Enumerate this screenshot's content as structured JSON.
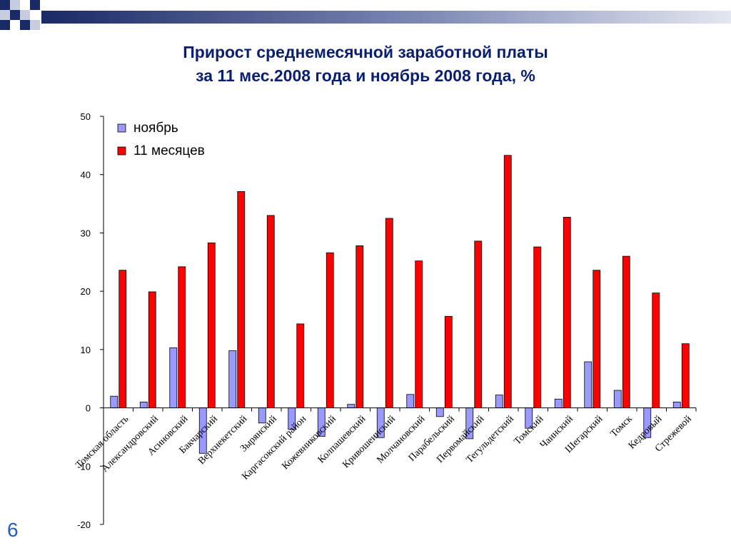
{
  "slide": {
    "title_line1": "Прирост среднемесячной заработной платы",
    "title_line2": "за 11 мес.2008 года и ноябрь 2008 года, %",
    "page_number": "6"
  },
  "colors": {
    "title": "#0a1f70",
    "page_number": "#1f5fbf",
    "banner_dark": "#1a2a66",
    "banner_light": "#c7cde0"
  },
  "chart_data": {
    "type": "bar",
    "categories": [
      "Томская область",
      "Александровский",
      "Асиновский",
      "Бакчарский",
      "Верхнекетский",
      "Зырянский",
      "Каргасокский район",
      "Кожевниковский",
      "Колпашевский",
      "Кривошеинский",
      "Молчановский",
      "Парабельский",
      "Первомайский",
      "Тегульдетский",
      "Томский",
      "Чаинский",
      "Шегарский",
      "Томск",
      "Кедровый",
      "Стрежевой"
    ],
    "series": [
      {
        "name": "ноябрь",
        "color": "#9999ff",
        "values": [
          2.0,
          1.0,
          10.3,
          -7.8,
          9.8,
          -2.6,
          -3.7,
          -4.9,
          0.6,
          -5.1,
          2.3,
          -1.5,
          -5.3,
          2.2,
          -3.5,
          1.5,
          7.9,
          3.0,
          -5.1,
          1.0
        ]
      },
      {
        "name": "11 месяцев",
        "color": "#ff0000",
        "values": [
          23.6,
          19.9,
          24.2,
          28.3,
          37.1,
          33.0,
          14.4,
          26.6,
          27.8,
          32.5,
          25.2,
          15.7,
          28.6,
          43.3,
          27.6,
          32.7,
          23.6,
          26.0,
          19.7,
          11.0
        ]
      }
    ],
    "ylim": [
      -20,
      50
    ],
    "yticks": [
      -20,
      -10,
      0,
      10,
      20,
      30,
      40,
      50
    ],
    "legend_position": "top-left"
  }
}
